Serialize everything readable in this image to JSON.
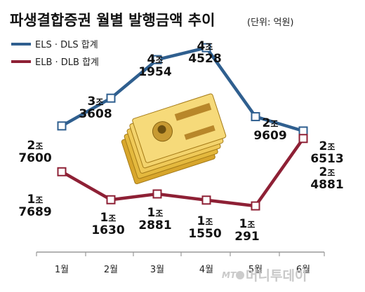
{
  "chart_data": {
    "type": "line",
    "title": "파생결합증권 월별 발행금액 추이",
    "unit_label": "(단위: 억원)",
    "categories": [
      "1월",
      "2월",
      "3월",
      "4월",
      "5월",
      "6월"
    ],
    "series": [
      {
        "name": "ELS · DLS 합계",
        "color": "#2f5f8f",
        "values": [
          27600,
          33608,
          41954,
          44528,
          29609,
          26513
        ],
        "labels": [
          {
            "jo": "2조",
            "rest": "7600"
          },
          {
            "jo": "3조",
            "rest": "3608"
          },
          {
            "jo": "4조",
            "rest": "1954"
          },
          {
            "jo": "4조",
            "rest": "4528"
          },
          {
            "jo": "2조",
            "rest": "9609"
          },
          {
            "jo": "2조",
            "rest": "6513"
          }
        ]
      },
      {
        "name": "ELB · DLB 합계",
        "color": "#8e2035",
        "values": [
          17689,
          11630,
          12881,
          11550,
          10291,
          24881
        ],
        "labels": [
          {
            "jo": "1조",
            "rest": "7689"
          },
          {
            "jo": "1조",
            "rest": "1630"
          },
          {
            "jo": "1조",
            "rest": "2881"
          },
          {
            "jo": "1조",
            "rest": "1550"
          },
          {
            "jo": "1조",
            "rest": "291"
          },
          {
            "jo": "2조",
            "rest": "4881"
          }
        ]
      }
    ],
    "grid": false,
    "legend": "top-left"
  },
  "watermark": {
    "prefix": "MT",
    "text": "머니투데이"
  }
}
